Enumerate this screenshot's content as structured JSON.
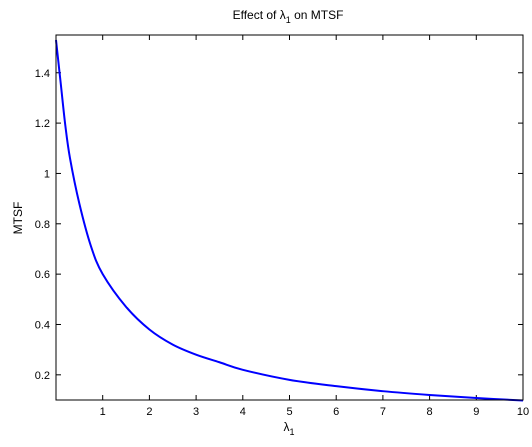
{
  "chart_data": {
    "type": "line",
    "title": {
      "prefix": "Effect of ",
      "symbol": "λ",
      "subscript": "1",
      "suffix": " on MTSF"
    },
    "xlabel": {
      "symbol": "λ",
      "subscript": "1"
    },
    "ylabel": "MTSF",
    "xlim": [
      0,
      10
    ],
    "ylim": [
      0.1,
      1.55
    ],
    "xticks": [
      1,
      2,
      3,
      4,
      5,
      6,
      7,
      8,
      9,
      10
    ],
    "xtick_labels": [
      "1",
      "2",
      "3",
      "4",
      "5",
      "6",
      "7",
      "8",
      "9",
      "10"
    ],
    "yticks": [
      0.2,
      0.4,
      0.6,
      0.8,
      1.0,
      1.2,
      1.4
    ],
    "ytick_labels": [
      "0.2",
      "0.4",
      "0.6",
      "0.8",
      "1",
      "1.2",
      "1.4"
    ],
    "grid": false,
    "series": [
      {
        "color": "#0000ff",
        "x": [
          0,
          0.1,
          0.2,
          0.3,
          0.5,
          0.75,
          1,
          1.5,
          2,
          2.5,
          3,
          3.5,
          4,
          5,
          6,
          7,
          8,
          9,
          10
        ],
        "y": [
          1.53,
          1.36,
          1.19,
          1.06,
          0.88,
          0.71,
          0.6,
          0.47,
          0.38,
          0.32,
          0.28,
          0.25,
          0.22,
          0.18,
          0.155,
          0.135,
          0.12,
          0.108,
          0.098
        ]
      }
    ]
  }
}
